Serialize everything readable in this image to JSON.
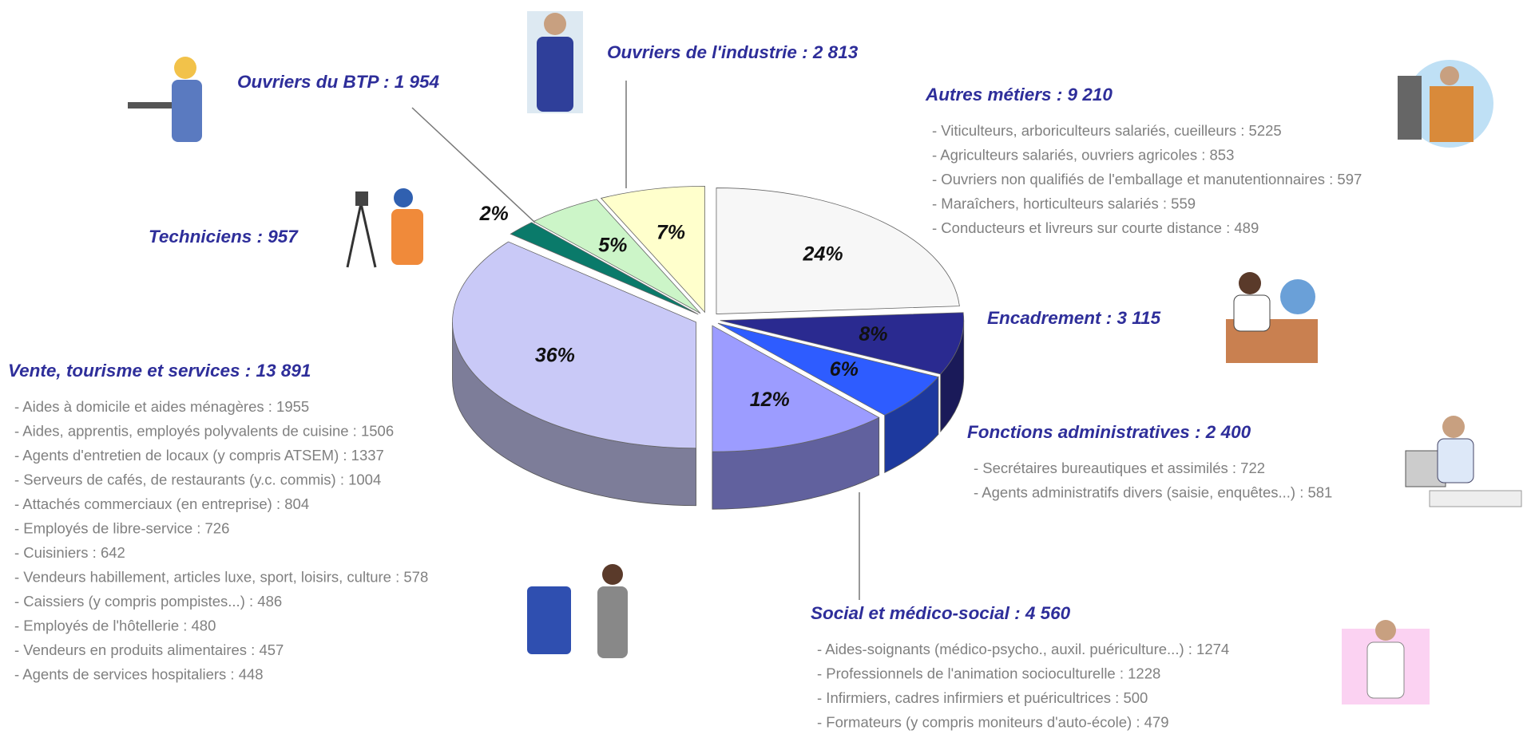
{
  "chart_data": {
    "type": "pie",
    "categories": [
      "Autres métiers : 9 210",
      "Encadrement : 3 115",
      "Fonctions administratives : 2 400",
      "Social et médico-social : 4 560",
      "Vente, tourisme et services : 13 891",
      "Techniciens : 957",
      "Ouvriers du BTP : 1 954",
      "Ouvriers de l'industrie : 2 813"
    ],
    "values": [
      24,
      8,
      6,
      12,
      36,
      2,
      5,
      7
    ],
    "value_labels": [
      "24%",
      "8%",
      "6%",
      "12%",
      "36%",
      "2%",
      "5%",
      "7%"
    ],
    "colors": [
      "#f7f7f7",
      "#2a2a90",
      "#2e5cff",
      "#9c9cff",
      "#c9c9f7",
      "#0a7a6a",
      "#ccf5c8",
      "#ffffcc"
    ],
    "details": [
      [
        "- Viticulteurs, arboriculteurs salariés, cueilleurs : 5225",
        "- Agriculteurs salariés, ouvriers agricoles : 853",
        "- Ouvriers non qualifiés de l'emballage et manutentionnaires : 597",
        "- Maraîchers, horticulteurs salariés : 559",
        "- Conducteurs et livreurs sur courte distance : 489"
      ],
      [],
      [
        "- Secrétaires bureautiques et assimilés : 722",
        "- Agents administratifs divers (saisie, enquêtes...) : 581"
      ],
      [
        "- Aides-soignants (médico-psycho., auxil. puériculture...) : 1274",
        "- Professionnels de l'animation socioculturelle : 1228",
        "- Infirmiers, cadres infirmiers et puéricultrices : 500",
        "- Formateurs (y compris moniteurs d'auto-école) : 479"
      ],
      [
        "- Aides à domicile et aides ménagères : 1955",
        "- Aides, apprentis, employés polyvalents de cuisine : 1506",
        "- Agents d'entretien de locaux (y compris ATSEM) : 1337",
        "- Serveurs de cafés, de restaurants (y.c. commis) : 1004",
        "- Attachés commerciaux (en entreprise) : 804",
        "- Employés de libre-service : 726",
        "- Cuisiniers : 642",
        "- Vendeurs habillement, articles luxe, sport, loisirs, culture : 578",
        "- Caissiers (y compris pompistes...) : 486",
        "- Employés de l'hôtellerie : 480",
        "- Vendeurs en produits alimentaires : 457",
        "- Agents de services hospitaliers : 448"
      ],
      [],
      [],
      []
    ]
  }
}
